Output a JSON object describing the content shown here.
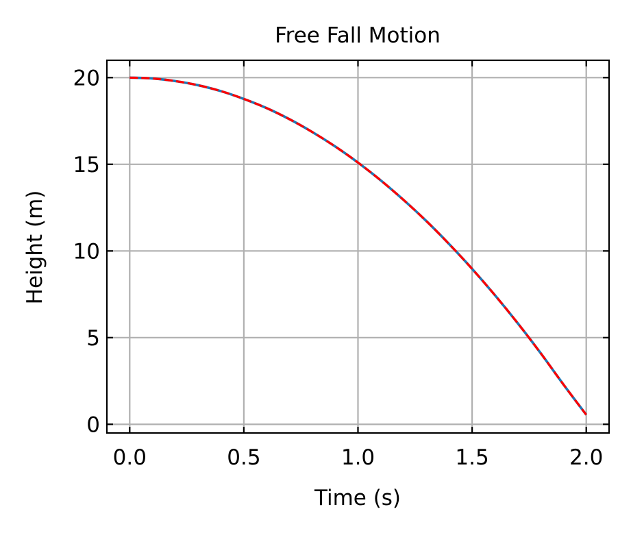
{
  "chart_data": {
    "type": "line",
    "title": "Free Fall Motion",
    "xlabel": "Time (s)",
    "ylabel": "Height (m)",
    "xlim": [
      -0.1,
      2.1
    ],
    "ylim": [
      -0.5,
      21
    ],
    "xticks": [
      0.0,
      0.5,
      1.0,
      1.5,
      2.0
    ],
    "xtick_labels": [
      "0.0",
      "0.5",
      "1.0",
      "1.5",
      "2.0"
    ],
    "yticks": [
      0,
      5,
      10,
      15,
      20
    ],
    "ytick_labels": [
      "0",
      "5",
      "10",
      "15",
      "20"
    ],
    "grid": true,
    "ticks_direction": "in",
    "series": [
      {
        "style": "solid",
        "color": "#1f77b4",
        "x": [
          0.0,
          0.1,
          0.2,
          0.3,
          0.4,
          0.5,
          0.6,
          0.7,
          0.8,
          0.9,
          1.0,
          1.1,
          1.2,
          1.3,
          1.4,
          1.5,
          1.6,
          1.7,
          1.8,
          1.9,
          2.0
        ],
        "y": [
          20.0,
          19.95,
          19.8,
          19.56,
          19.22,
          18.77,
          18.24,
          17.6,
          16.86,
          16.03,
          15.1,
          14.07,
          12.94,
          11.72,
          10.39,
          8.97,
          7.45,
          5.83,
          4.11,
          2.3,
          0.55
        ]
      },
      {
        "style": "dashed",
        "color": "#ff0000",
        "x": [
          0.0,
          0.1,
          0.2,
          0.3,
          0.4,
          0.5,
          0.6,
          0.7,
          0.8,
          0.9,
          1.0,
          1.1,
          1.2,
          1.3,
          1.4,
          1.5,
          1.6,
          1.7,
          1.8,
          1.9,
          2.0
        ],
        "y": [
          20.0,
          19.95,
          19.8,
          19.56,
          19.22,
          18.77,
          18.24,
          17.6,
          16.86,
          16.03,
          15.1,
          14.07,
          12.94,
          11.72,
          10.39,
          8.97,
          7.45,
          5.83,
          4.11,
          2.3,
          0.55
        ]
      }
    ]
  }
}
